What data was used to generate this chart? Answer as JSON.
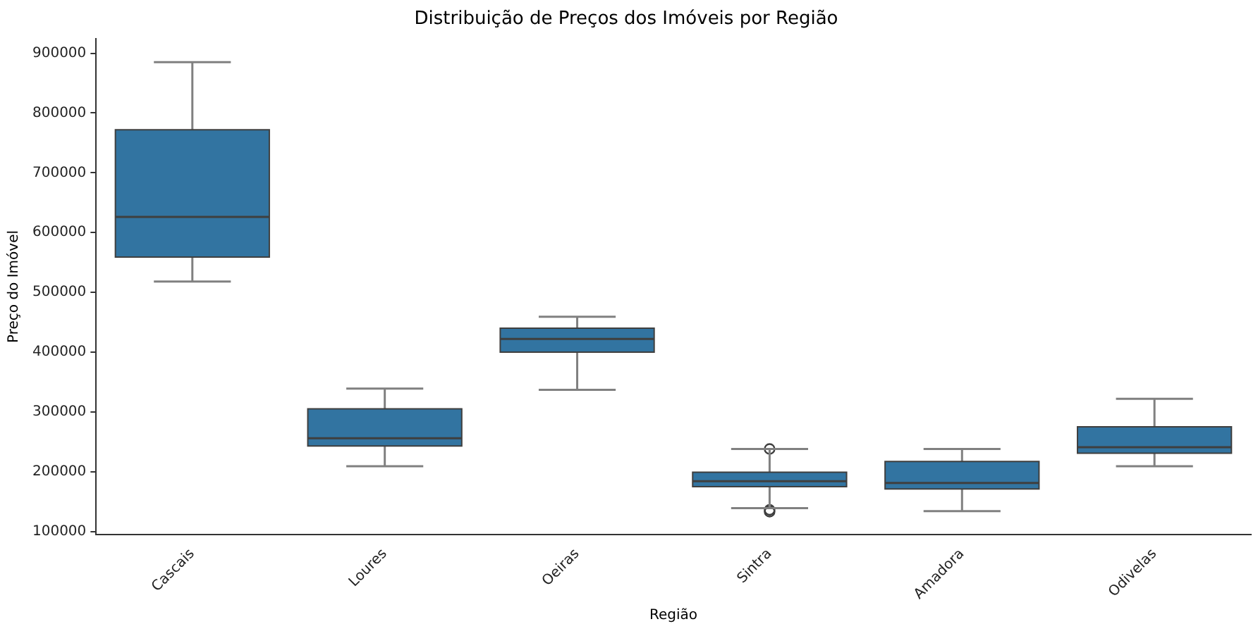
{
  "chart_data": {
    "type": "box",
    "title": "Distribuição de Preços dos Imóveis por Região",
    "xlabel": "Região",
    "ylabel": "Preço do Imóvel",
    "categories": [
      "Cascais",
      "Loures",
      "Oeiras",
      "Sintra",
      "Amadora",
      "Odivelas"
    ],
    "color": "#3274a1",
    "boxes": [
      {
        "low": 518000,
        "q1": 559000,
        "median": 626000,
        "q3": 772000,
        "high": 885000
      },
      {
        "low": 209000,
        "q1": 243000,
        "median": 256000,
        "q3": 305000,
        "high": 339000
      },
      {
        "low": 337000,
        "q1": 400000,
        "median": 422000,
        "q3": 440000,
        "high": 459000
      },
      {
        "low": 139000,
        "q1": 175000,
        "median": 184000,
        "q3": 199000,
        "high": 238000,
        "outliers": [
          238000,
          136000,
          133000
        ]
      },
      {
        "low": 134000,
        "q1": 171000,
        "median": 181000,
        "q3": 217000,
        "high": 238000
      },
      {
        "low": 209000,
        "q1": 231000,
        "median": 241000,
        "q3": 275000,
        "high": 322000
      }
    ],
    "ylim": [
      95000,
      924000
    ],
    "yticks": [
      100000,
      200000,
      300000,
      400000,
      500000,
      600000,
      700000,
      800000,
      900000
    ],
    "grid": false,
    "legend": false
  }
}
